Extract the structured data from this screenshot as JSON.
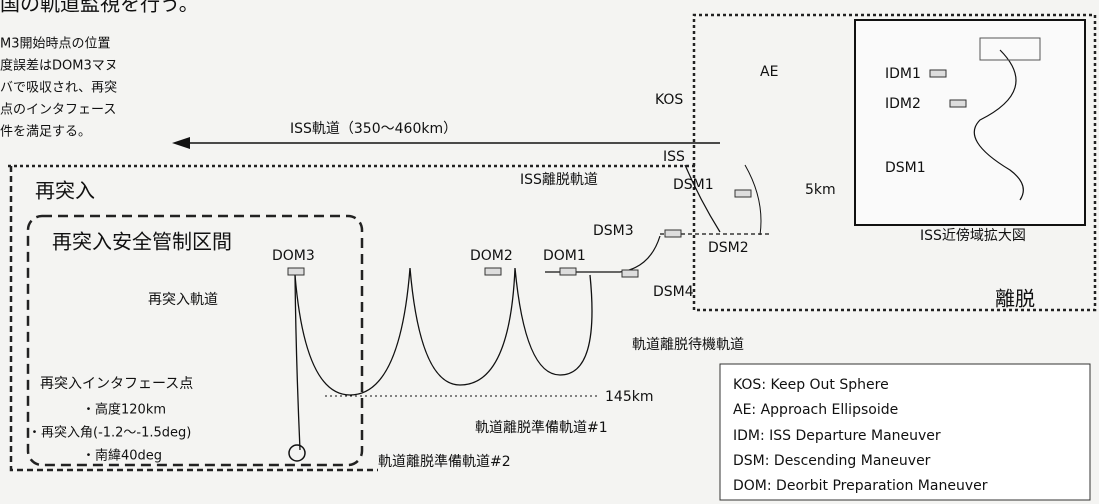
{
  "header": {
    "text": "国の軌道監視を行う。"
  },
  "left_note": {
    "lines": [
      "M3開始時点の位置",
      "度誤差はDOM3マヌ",
      "バで吸収され、再突",
      "点のインタフェース",
      "件を満足する。"
    ]
  },
  "orbits": {
    "iss_orbit": "ISS軌道（350〜460km）",
    "iss_departure": "ISS離脱軌道",
    "reentry_orbit": "再突入軌道",
    "standby": "軌道離脱待機軌道",
    "prep1": "軌道離脱準備軌道#1",
    "prep2": "軌道離脱準備軌道#2",
    "altitude": "145km"
  },
  "points": {
    "kos": "KOS",
    "ae": "AE",
    "iss": "ISS",
    "dsm1": "DSM1",
    "dsm2": "DSM2",
    "dsm3": "DSM3",
    "dsm4": "DSM4",
    "range": "5km",
    "dom1": "DOM1",
    "dom2": "DOM2",
    "dom3": "DOM3"
  },
  "reentry": {
    "region": "再突入",
    "safety_zone": "再突入安全管制区間",
    "interface_title": "再突入インタフェース点",
    "items": [
      "・高度120km",
      "・再突入角(-1.2〜-1.5deg)",
      "・南緯40deg"
    ]
  },
  "departure": {
    "region": "離脱",
    "inset": {
      "idm1": "IDM1",
      "idm2": "IDM2",
      "dsm1": "DSM1",
      "caption": "ISS近傍域拡大図"
    }
  },
  "legend": {
    "lines": [
      "KOS: Keep Out Sphere",
      "AE: Approach Ellipsoide",
      "IDM: ISS Departure Maneuver",
      "DSM: Descending Maneuver",
      "DOM: Deorbit Preparation Maneuver"
    ]
  }
}
